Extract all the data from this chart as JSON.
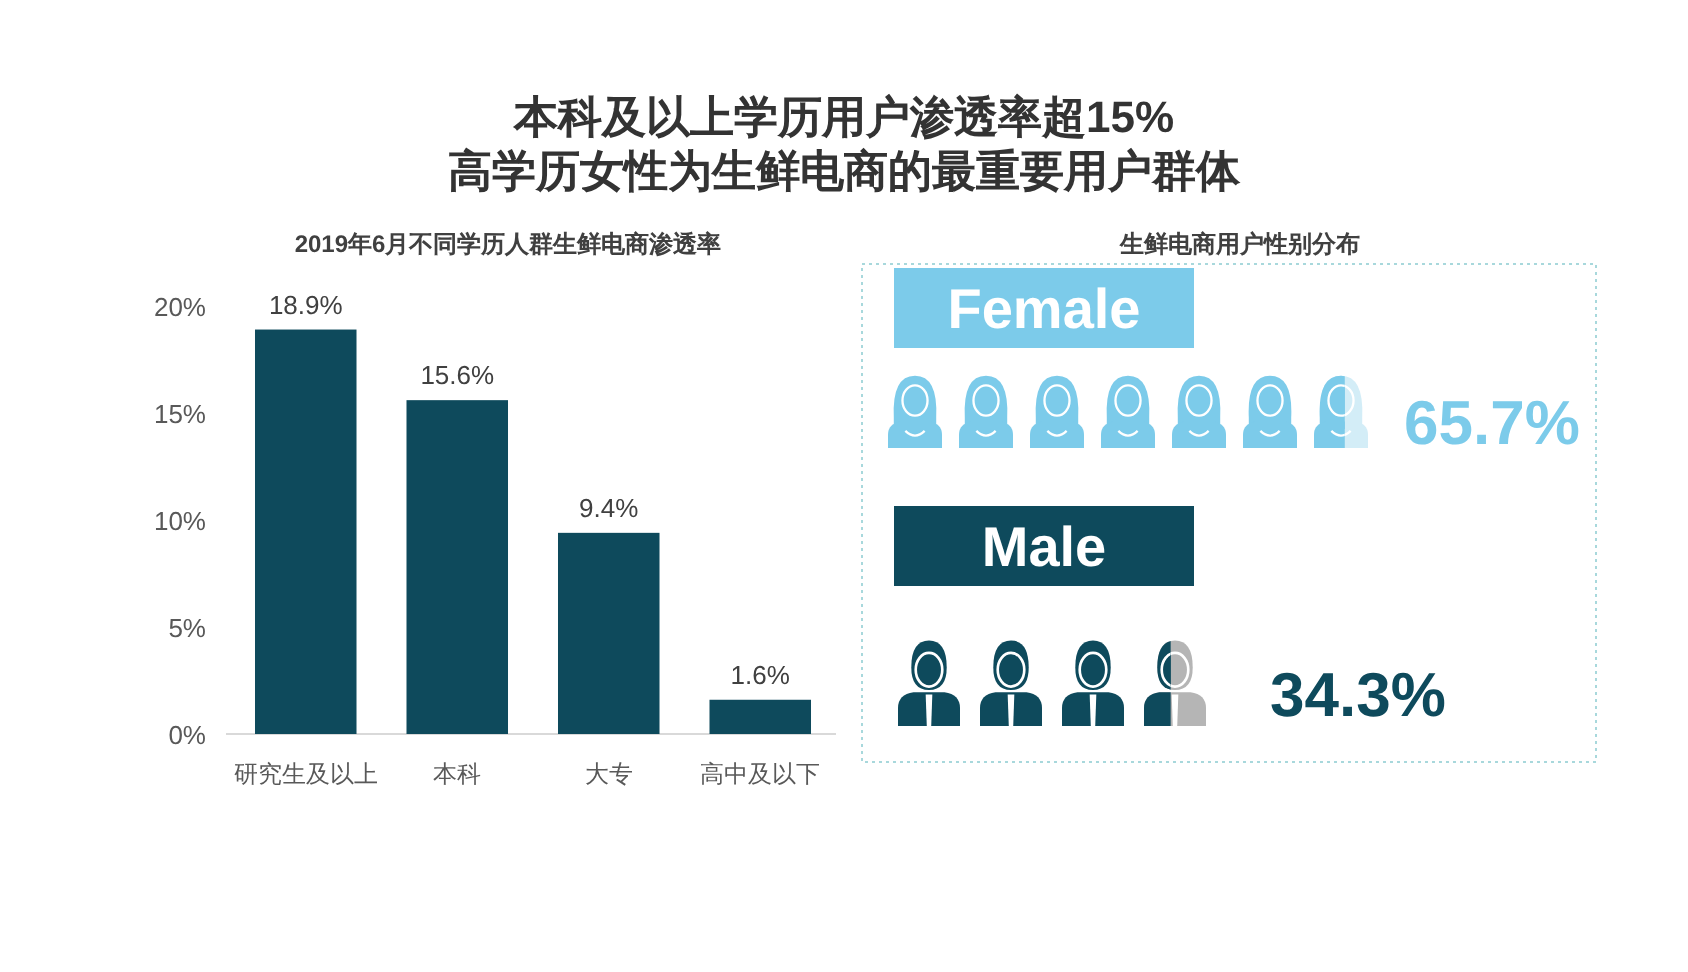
{
  "chart_data": [
    {
      "type": "bar",
      "title": "本科及以上学历用户渗透率超15%\n高学历女性为生鲜电商的最重要用户群体",
      "subtitle": "2019年6月不同学历人群生鲜电商渗透率",
      "categories": [
        "研究生及以上",
        "本科",
        "大专",
        "高中及以下"
      ],
      "values": [
        18.9,
        15.6,
        9.4,
        1.6
      ],
      "color": "#0e4a5c",
      "value_labels": [
        "18.9%",
        "15.6%",
        "9.4%",
        "1.6%"
      ],
      "ylim": [
        0,
        20
      ],
      "yticks": [
        {
          "value": 0,
          "label": "0%"
        },
        {
          "value": 5,
          "label": "5%"
        },
        {
          "value": 10,
          "label": "10%"
        },
        {
          "value": 15,
          "label": "15%"
        },
        {
          "value": 20,
          "label": "20%"
        }
      ]
    },
    {
      "type": "other",
      "title": "生鲜电商用户性别分布",
      "categories": [
        "Female",
        "Male"
      ],
      "values": [
        65.7,
        34.3
      ],
      "colors": [
        "#7ccbea",
        "#0e4a5c"
      ],
      "value_labels": [
        "65.7%",
        "34.3%"
      ]
    }
  ]
}
